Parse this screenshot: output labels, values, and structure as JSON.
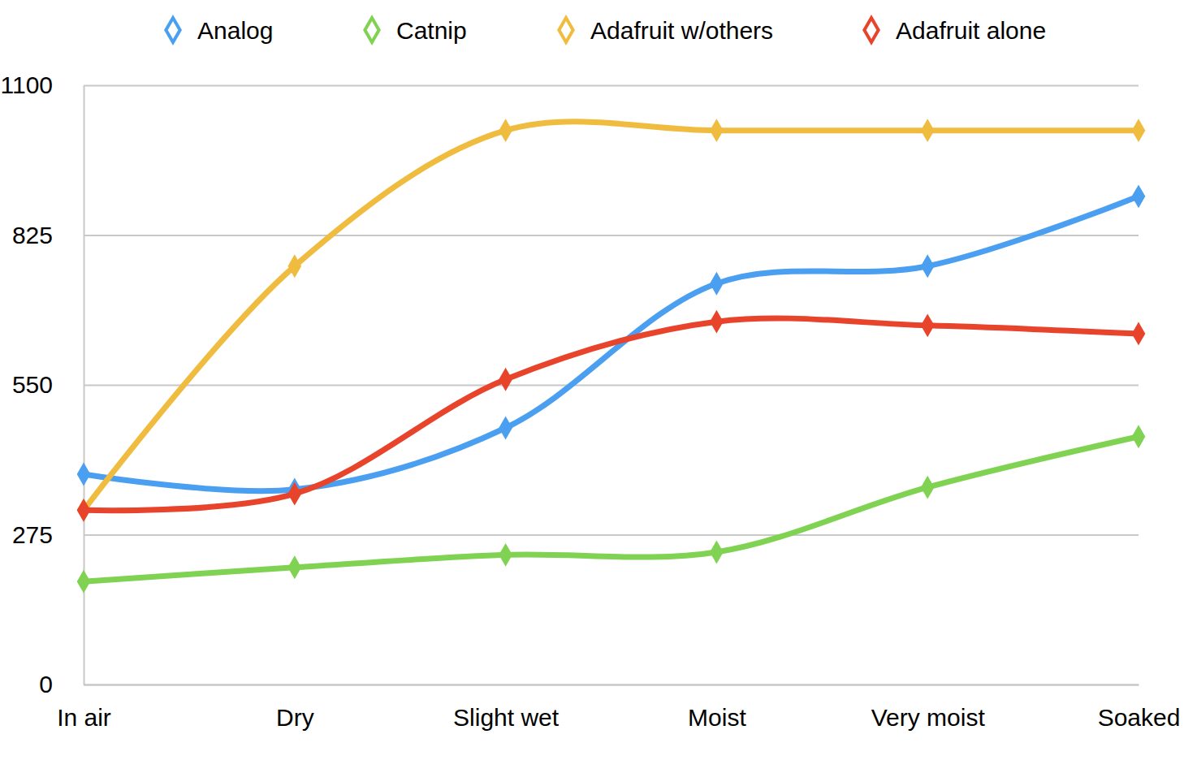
{
  "chart_data": {
    "type": "line",
    "categories": [
      "In air",
      "Dry",
      "Slight wet",
      "Moist",
      "Very moist",
      "Soaked"
    ],
    "series": [
      {
        "name": "Analog",
        "color": "#4a9ff0",
        "values": [
          386,
          358,
          471,
          736,
          768,
          896
        ]
      },
      {
        "name": "Catnip",
        "color": "#80d352",
        "values": [
          189,
          215,
          238,
          243,
          362,
          455
        ]
      },
      {
        "name": "Adafruit w/others",
        "color": "#efbc3f",
        "values": [
          320,
          768,
          1017,
          1017,
          1017,
          1017
        ]
      },
      {
        "name": "Adafruit alone",
        "color": "#e8432b",
        "values": [
          320,
          350,
          560,
          666,
          659,
          644
        ]
      }
    ],
    "ylim": [
      0,
      1100
    ],
    "yticks": [
      0,
      275,
      550,
      825,
      1100
    ],
    "grid": true,
    "legend": "top",
    "marker": "diamond"
  }
}
